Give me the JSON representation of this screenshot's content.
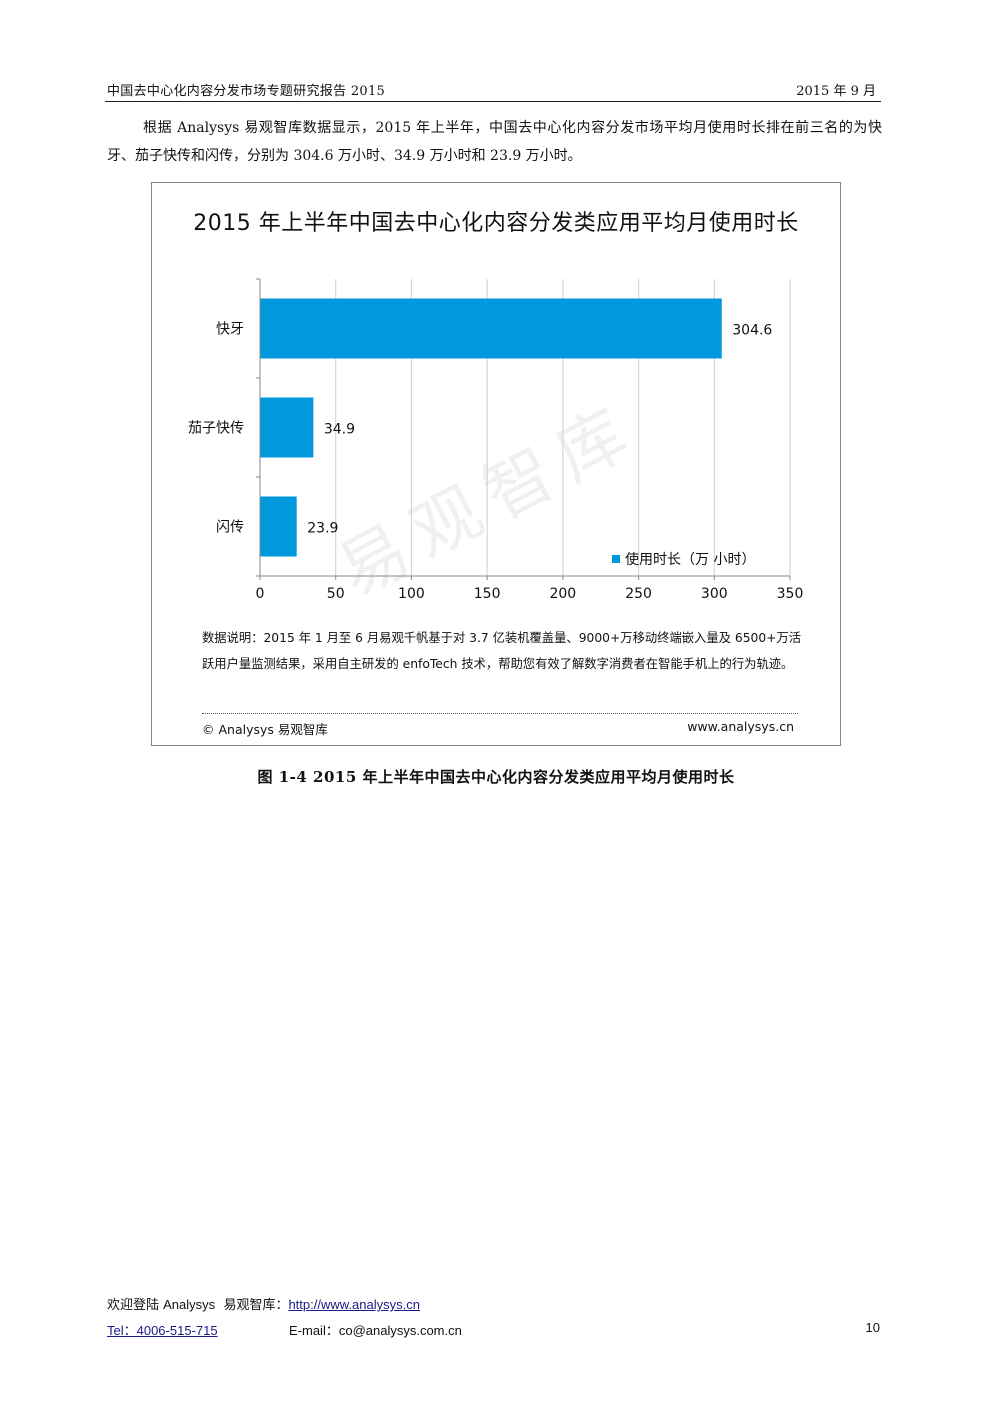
{
  "header": {
    "title": "中国去中心化内容分发市场专题研究报告 2015",
    "date": "2015 年 9 月"
  },
  "intro": "根据 Analysys 易观智库数据显示，2015 年上半年，中国去中心化内容分发市场平均月使用时长排在前三名的为快牙、茄子快传和闪传，分别为 304.6 万小时、34.9 万小时和 23.9 万小时。",
  "figure": {
    "watermark": "易观智库",
    "note": "数据说明：2015 年 1 月至 6 月易观千帆基于对 3.7 亿装机覆盖量、9000+万移动终端嵌入量及 6500+万活跃用户量监测结果，采用自主研发的 enfoTech 技术，帮助您有效了解数字消费者在智能手机上的行为轨迹。",
    "copyright": "© Analysys 易观智库",
    "site": "www.analysys.cn"
  },
  "chart_data": {
    "type": "bar",
    "orientation": "horizontal",
    "title": "2015 年上半年中国去中心化内容分发类应用平均月使用时长",
    "categories": [
      "快牙",
      "茄子快传",
      "闪传"
    ],
    "series": [
      {
        "name": "使用时长（万 小时）",
        "values": [
          304.6,
          34.9,
          23.9
        ],
        "color": "#0099dd"
      }
    ],
    "value_labels": [
      "304.6",
      "34.9",
      "23.9"
    ],
    "xlim": [
      0,
      350
    ],
    "xticks": [
      0,
      50,
      100,
      150,
      200,
      250,
      300,
      350
    ],
    "grid": true,
    "legend_position": "bottom-right"
  },
  "caption": "图 1-4 2015 年上半年中国去中心化内容分发类应用平均月使用时长",
  "footer": {
    "welcome": "欢迎登陆 ",
    "brand": "Analysys",
    "brand_cn": "易观智库：",
    "url": "http://www.analysys.cn",
    "tel": "Tel：4006-515-715",
    "email": "E-mail：co@analysys.com.cn",
    "page": "10"
  }
}
